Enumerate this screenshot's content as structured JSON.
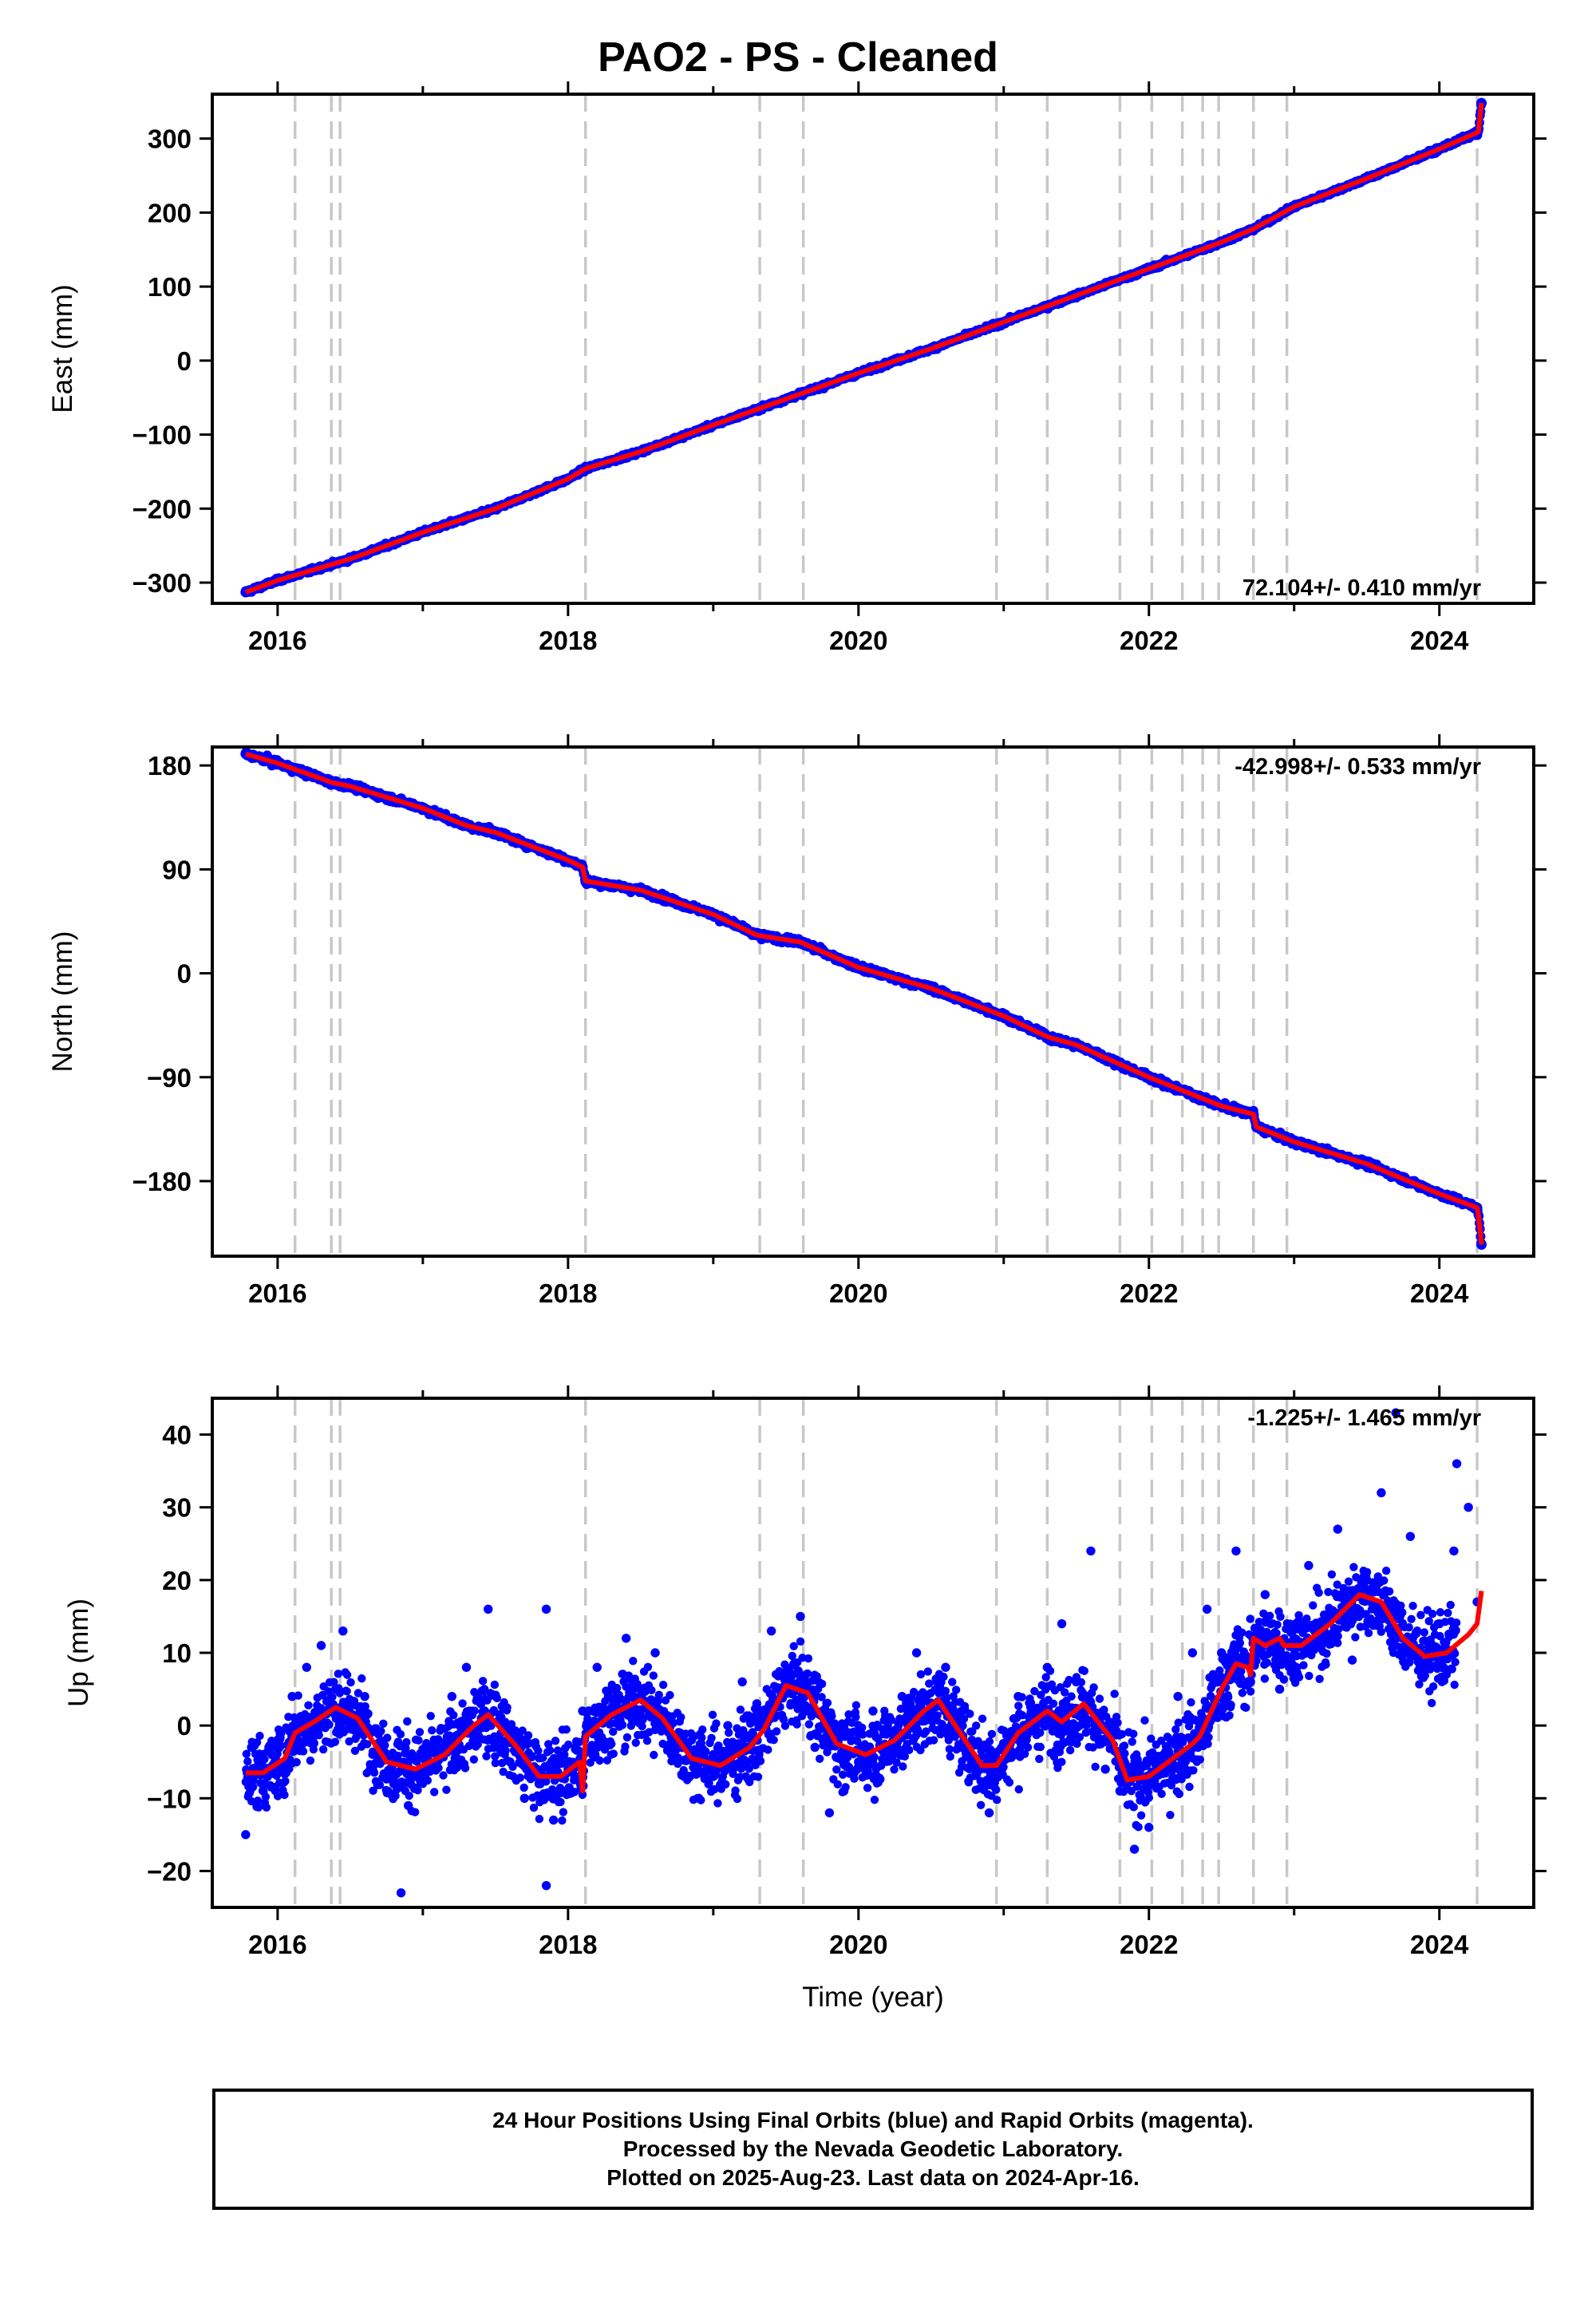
{
  "title": "PAO2  - PS - Cleaned",
  "chart_data": [
    {
      "type": "scatter",
      "ylabel": "East (mm)",
      "xlabel": "",
      "xlim": [
        2015.55,
        2024.65
      ],
      "ylim": [
        -328,
        360
      ],
      "yticks": [
        -300,
        -200,
        -100,
        0,
        100,
        200,
        300
      ],
      "yticklabels": [
        "−300",
        "−200",
        "−100",
        "0",
        "100",
        "200",
        "300"
      ],
      "xticks": [
        2016,
        2018,
        2020,
        2022,
        2024
      ],
      "xticklabels": [
        "2016",
        "2018",
        "2020",
        "2022",
        "2024"
      ],
      "rate_label": "72.104+/- 0.410 mm/yr",
      "series": [
        {
          "style": "dots",
          "color": "#0000ff",
          "x": [
            2015.78,
            2016.0,
            2016.5,
            2017.0,
            2017.5,
            2018.0,
            2018.12,
            2018.5,
            2019.0,
            2019.5,
            2020.0,
            2020.5,
            2021.0,
            2021.5,
            2022.0,
            2022.5,
            2022.72,
            2023.0,
            2023.5,
            2024.0,
            2024.26,
            2024.29
          ],
          "y": [
            -313,
            -297,
            -268,
            -232,
            -200,
            -160,
            -146,
            -123,
            -87,
            -52,
            -17,
            16,
            52,
            88,
            124,
            160,
            178,
            208,
            246,
            286,
            305,
            348
          ]
        },
        {
          "style": "line",
          "color": "#ff0000",
          "x": [
            2015.78,
            2016.0,
            2016.5,
            2017.0,
            2017.5,
            2018.0,
            2018.12,
            2018.5,
            2019.0,
            2019.5,
            2020.0,
            2020.5,
            2021.0,
            2021.5,
            2022.0,
            2022.5,
            2022.72,
            2023.0,
            2023.5,
            2024.0,
            2024.26,
            2024.27,
            2024.29
          ],
          "y": [
            -313,
            -297,
            -268,
            -232,
            -200,
            -160,
            -146,
            -123,
            -87,
            -52,
            -17,
            16,
            52,
            88,
            124,
            160,
            178,
            208,
            246,
            286,
            308,
            310,
            348
          ]
        }
      ]
    },
    {
      "type": "scatter",
      "ylabel": "North (mm)",
      "xlabel": "",
      "xlim": [
        2015.55,
        2024.65
      ],
      "ylim": [
        -245,
        196
      ],
      "yticks": [
        -180,
        -90,
        0,
        90,
        180
      ],
      "yticklabels": [
        "−180",
        "−90",
        "0",
        "90",
        "180"
      ],
      "xticks": [
        2016,
        2018,
        2020,
        2022,
        2024
      ],
      "xticklabels": [
        "2016",
        "2018",
        "2020",
        "2022",
        "2024"
      ],
      "rate_label": "-42.998+/- 0.533 mm/yr",
      "series": [
        {
          "style": "dots",
          "color": "#0000ff",
          "x": [
            2015.78,
            2016.0,
            2016.38,
            2016.5,
            2017.0,
            2017.3,
            2017.5,
            2018.0,
            2018.1,
            2018.12,
            2018.5,
            2019.0,
            2019.3,
            2019.6,
            2020.0,
            2020.5,
            2021.0,
            2021.3,
            2021.5,
            2022.0,
            2022.5,
            2022.72,
            2022.74,
            2023.0,
            2023.5,
            2024.0,
            2024.26,
            2024.29
          ],
          "y": [
            190,
            182,
            165,
            162,
            143,
            128,
            122,
            98,
            92,
            80,
            72,
            51,
            33,
            27,
            5,
            -13,
            -37,
            -55,
            -62,
            -90,
            -115,
            -122,
            -133,
            -146,
            -165,
            -191,
            -203,
            -235
          ]
        },
        {
          "style": "line",
          "color": "#ff0000",
          "x": [
            2015.78,
            2016.0,
            2016.38,
            2016.5,
            2017.0,
            2017.3,
            2017.5,
            2018.0,
            2018.1,
            2018.12,
            2018.5,
            2019.0,
            2019.3,
            2019.6,
            2020.0,
            2020.5,
            2021.0,
            2021.3,
            2021.5,
            2022.0,
            2022.5,
            2022.72,
            2022.74,
            2023.0,
            2023.5,
            2024.0,
            2024.26,
            2024.27,
            2024.29
          ],
          "y": [
            190,
            182,
            165,
            162,
            143,
            128,
            122,
            98,
            92,
            80,
            72,
            51,
            33,
            27,
            5,
            -13,
            -37,
            -55,
            -62,
            -90,
            -115,
            -122,
            -133,
            -146,
            -165,
            -191,
            -203,
            -210,
            -235
          ]
        }
      ]
    },
    {
      "type": "scatter",
      "ylabel": "Up (mm)",
      "xlabel": "Time (year)",
      "xlim": [
        2015.55,
        2024.65
      ],
      "ylim": [
        -25,
        45
      ],
      "yticks": [
        -20,
        -10,
        0,
        10,
        20,
        30,
        40
      ],
      "yticklabels": [
        "−20",
        "−10",
        "0",
        "10",
        "20",
        "30",
        "40"
      ],
      "xticks": [
        2016,
        2018,
        2020,
        2022,
        2024
      ],
      "xticklabels": [
        "2016",
        "2018",
        "2020",
        "2022",
        "2024"
      ],
      "rate_label": "-1.225+/- 1.465 mm/yr",
      "series": [
        {
          "style": "dots",
          "color": "#0000ff",
          "x": [
            2015.78,
            2015.8,
            2015.82,
            2015.9,
            2016.0,
            2016.1,
            2016.2,
            2016.3,
            2016.4,
            2016.45,
            2016.5,
            2016.6,
            2016.7,
            2016.8,
            2016.9,
            2017.0,
            2017.1,
            2017.2,
            2017.3,
            2017.4,
            2017.45,
            2017.5,
            2017.6,
            2017.7,
            2017.8,
            2017.85,
            2017.9,
            2018.0,
            2018.1,
            2018.2,
            2018.3,
            2018.4,
            2018.5,
            2018.6,
            2018.7,
            2018.8,
            2018.9,
            2019.0,
            2019.1,
            2019.2,
            2019.3,
            2019.4,
            2019.5,
            2019.6,
            2019.7,
            2019.8,
            2019.9,
            2020.0,
            2020.1,
            2020.2,
            2020.3,
            2020.4,
            2020.5,
            2020.6,
            2020.7,
            2020.8,
            2020.9,
            2021.0,
            2021.1,
            2021.2,
            2021.3,
            2021.4,
            2021.5,
            2021.6,
            2021.7,
            2021.8,
            2021.9,
            2022.0,
            2022.1,
            2022.2,
            2022.3,
            2022.4,
            2022.5,
            2022.6,
            2022.7,
            2022.8,
            2022.9,
            2023.0,
            2023.1,
            2023.2,
            2023.3,
            2023.4,
            2023.5,
            2023.6,
            2023.7,
            2023.8,
            2023.9,
            2024.0,
            2024.1,
            2024.2,
            2024.26,
            2016.85,
            2017.85,
            2023.7,
            2024.12
          ],
          "y": [
            -15,
            -8,
            -3,
            -4,
            -2,
            4,
            8,
            11,
            5,
            13,
            0,
            4,
            -4,
            -8,
            -11,
            -6,
            -2,
            4,
            8,
            3,
            16,
            -2,
            -5,
            -10,
            -8,
            16,
            -13,
            -6,
            2,
            8,
            5,
            12,
            4,
            10,
            -3,
            -7,
            -10,
            -4,
            0,
            6,
            3,
            13,
            7,
            15,
            -3,
            -12,
            -9,
            -5,
            2,
            -1,
            4,
            10,
            2,
            8,
            -3,
            -6,
            -12,
            -3,
            4,
            1,
            8,
            14,
            6,
            24,
            -6,
            -9,
            -17,
            -14,
            -5,
            4,
            10,
            16,
            10,
            24,
            6,
            18,
            5,
            12,
            22,
            13,
            27,
            9,
            20,
            32,
            12,
            26,
            8,
            14,
            24,
            30,
            17,
            -23,
            -22,
            43,
            36
          ]
        },
        {
          "style": "line",
          "color": "#ff0000",
          "x": [
            2015.78,
            2015.9,
            2016.05,
            2016.12,
            2016.25,
            2016.4,
            2016.55,
            2016.75,
            2016.95,
            2017.15,
            2017.35,
            2017.45,
            2017.65,
            2017.8,
            2017.95,
            2018.08,
            2018.1,
            2018.12,
            2018.3,
            2018.5,
            2018.65,
            2018.85,
            2019.05,
            2019.25,
            2019.35,
            2019.5,
            2019.65,
            2019.85,
            2020.05,
            2020.25,
            2020.45,
            2020.55,
            2020.7,
            2020.85,
            2020.95,
            2021.1,
            2021.3,
            2021.4,
            2021.55,
            2021.75,
            2021.85,
            2022.0,
            2022.1,
            2022.3,
            2022.35,
            2022.5,
            2022.6,
            2022.68,
            2022.7,
            2022.72,
            2022.8,
            2022.9,
            2022.93,
            2023.05,
            2023.25,
            2023.45,
            2023.6,
            2023.75,
            2023.9,
            2024.05,
            2024.2,
            2024.26,
            2024.29
          ],
          "y": [
            -6.5,
            -6.5,
            -4.5,
            -1,
            0.5,
            2.5,
            1,
            -5,
            -6,
            -4,
            0,
            1.5,
            -3,
            -7,
            -7,
            -5,
            -9,
            -1.5,
            1.5,
            3.5,
            1,
            -4.5,
            -5.5,
            -3,
            -0.5,
            5.5,
            4.5,
            -2.5,
            -4,
            -2,
            2,
            3.5,
            -1,
            -5.5,
            -5.5,
            -1,
            2,
            0.5,
            3,
            -2,
            -7.5,
            -7,
            -5.5,
            -2.5,
            -1.5,
            5,
            8.5,
            8,
            7,
            12,
            11,
            12,
            11,
            11,
            14,
            18,
            17,
            12,
            9.5,
            10,
            12.5,
            14,
            18.5
          ]
        }
      ]
    }
  ],
  "event_lines_x": [
    2016.12,
    2016.37,
    2016.43,
    2018.12,
    2019.32,
    2019.62,
    2020.95,
    2021.3,
    2021.8,
    2022.02,
    2022.23,
    2022.37,
    2022.48,
    2022.72,
    2022.95,
    2024.26
  ],
  "footer": {
    "line1": "24 Hour Positions Using Final Orbits (blue) and Rapid Orbits (magenta).",
    "line2": "Processed by the Nevada Geodetic Laboratory.",
    "line3": "Plotted on 2025-Aug-23. Last data on 2024-Apr-16."
  }
}
